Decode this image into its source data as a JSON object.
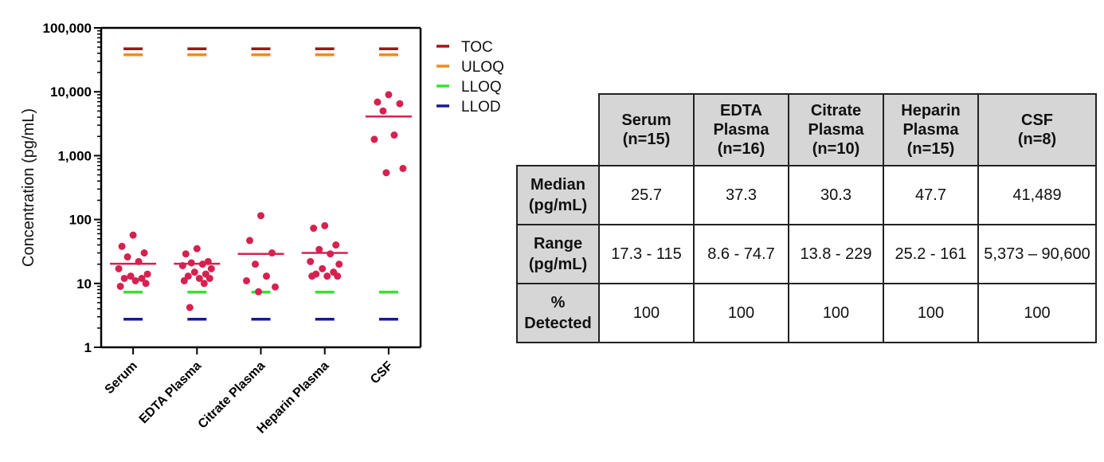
{
  "chart_data": {
    "type": "scatter",
    "ylabel": "Concentration (pg/mL)",
    "yscale": "log",
    "ylim": [
      1,
      100000
    ],
    "y_ticks": [
      "1",
      "10",
      "100",
      "1,000",
      "10,000",
      "100,000"
    ],
    "categories": [
      "Serum",
      "EDTA Plasma",
      "Citrate Plasma",
      "Heparin Plasma",
      "CSF"
    ],
    "points": [
      [
        57,
        38,
        30,
        26,
        22,
        17,
        14,
        13,
        12,
        12,
        11,
        10,
        9
      ],
      [
        35,
        29,
        22,
        21,
        20,
        19,
        17,
        15,
        14,
        13,
        12,
        12,
        11,
        10,
        4.2
      ],
      [
        115,
        47,
        30,
        20,
        13,
        11,
        8.8,
        7.4
      ],
      [
        80,
        73,
        40,
        34,
        29,
        22,
        20,
        17,
        15,
        14,
        13,
        13,
        13
      ],
      [
        9000,
        6900,
        6500,
        5000,
        2100,
        1800,
        630,
        540
      ]
    ],
    "medians": [
      20.3,
      20.3,
      29,
      30,
      4100
    ],
    "reference_lines": [
      {
        "name": "TOC",
        "value": 47000,
        "color": "#a01616"
      },
      {
        "name": "ULOQ",
        "value": 38000,
        "color": "#f28a1a"
      },
      {
        "name": "LLOQ",
        "value": 7.3,
        "color": "#33e233"
      },
      {
        "name": "LLOD",
        "value": 2.75,
        "color": "#1a1a8c"
      }
    ],
    "point_color": "#d62150",
    "median_color": "#d62150",
    "legend": [
      "TOC",
      "ULOQ",
      "LLOQ",
      "LLOD"
    ],
    "legend_position": "top-right"
  },
  "table": {
    "headers": [
      "Serum\n(n=15)",
      "EDTA\nPlasma\n(n=16)",
      "Citrate\nPlasma\n(n=10)",
      "Heparin\nPlasma\n(n=15)",
      "CSF\n(n=8)"
    ],
    "rows": [
      {
        "label": "Median\n(pg/mL)",
        "values": [
          "25.7",
          "37.3",
          "30.3",
          "47.7",
          "41,489"
        ]
      },
      {
        "label": "Range\n(pg/mL)",
        "values": [
          "17.3 - 115",
          "8.6 - 74.7",
          "13.8 - 229",
          "25.2 - 161",
          "5,373 – 90,600"
        ]
      },
      {
        "label": "%\nDetected",
        "values": [
          "100",
          "100",
          "100",
          "100",
          "100"
        ]
      }
    ]
  }
}
